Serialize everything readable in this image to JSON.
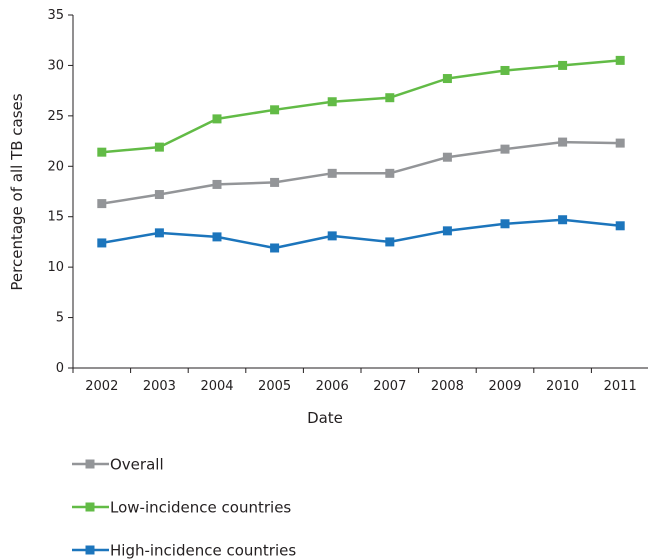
{
  "chart_data": {
    "type": "line",
    "title": "",
    "xlabel": "Date",
    "ylabel": "Percentage of all TB cases",
    "categories": [
      "2002",
      "2003",
      "2004",
      "2005",
      "2006",
      "2007",
      "2008",
      "2009",
      "2010",
      "2011"
    ],
    "ylim": [
      0,
      35
    ],
    "yticks": [
      0,
      5,
      10,
      15,
      20,
      25,
      30,
      35
    ],
    "grid": false,
    "legend": "bottom",
    "series": [
      {
        "name": "Overall",
        "color": "#939598",
        "values": [
          16.3,
          17.2,
          18.2,
          18.4,
          19.3,
          19.3,
          20.9,
          21.7,
          22.4,
          22.3
        ]
      },
      {
        "name": "Low-incidence countries",
        "color": "#62bb46",
        "values": [
          21.4,
          21.9,
          24.7,
          25.6,
          26.4,
          26.8,
          28.7,
          29.5,
          30.0,
          30.5
        ]
      },
      {
        "name": "High-incidence countries",
        "color": "#1c75bc",
        "values": [
          12.4,
          13.4,
          13.0,
          11.9,
          13.1,
          12.5,
          13.6,
          14.3,
          14.7,
          14.1
        ]
      }
    ]
  }
}
